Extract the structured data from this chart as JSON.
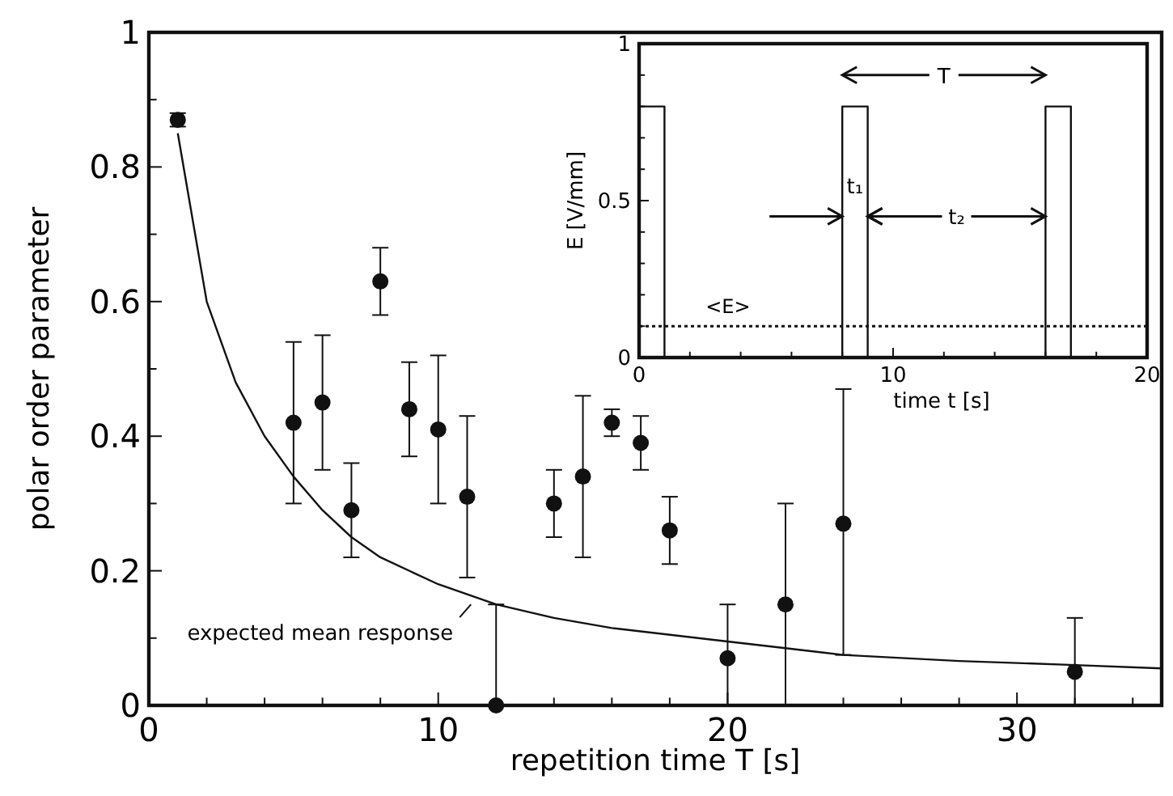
{
  "chart_data": [
    {
      "type": "scatter",
      "xlabel": "repetition time T [s]",
      "ylabel": "polar order parameter",
      "xlim": [
        0,
        35
      ],
      "ylim": [
        0,
        1
      ],
      "xticks": [
        0,
        {
          "value": 2,
          "label": null
        },
        {
          "value": 4,
          "label": null
        },
        {
          "value": 6,
          "label": null
        },
        {
          "value": 8,
          "label": null
        },
        10,
        {
          "value": 12,
          "label": null
        },
        {
          "value": 14,
          "label": null
        },
        {
          "value": 16,
          "label": null
        },
        {
          "value": 18,
          "label": null
        },
        20,
        {
          "value": 22,
          "label": null
        },
        {
          "value": 24,
          "label": null
        },
        {
          "value": 26,
          "label": null
        },
        {
          "value": 28,
          "label": null
        },
        30,
        {
          "value": 32,
          "label": null
        },
        {
          "value": 34,
          "label": null
        }
      ],
      "yticks": [
        0,
        {
          "value": 0.1,
          "label": null
        },
        0.2,
        {
          "value": 0.3,
          "label": null
        },
        0.4,
        {
          "value": 0.5,
          "label": null
        },
        0.6,
        {
          "value": 0.7,
          "label": null
        },
        0.8,
        {
          "value": 0.9,
          "label": null
        },
        1
      ],
      "series": [
        {
          "type": "scatter",
          "color": "#111111",
          "marker": "circle",
          "x": [
            1,
            5,
            6,
            7,
            8,
            9,
            10,
            11,
            12,
            14,
            15,
            16,
            17,
            18,
            20,
            22,
            24,
            32
          ],
          "values": [
            0.87,
            0.42,
            0.45,
            0.29,
            0.63,
            0.44,
            0.41,
            0.31,
            0,
            0.3,
            0.34,
            0.42,
            0.39,
            0.26,
            0.07,
            0.15,
            0.27,
            0.05
          ],
          "errors": [
            [
              0.86,
              0.88
            ],
            [
              0.3,
              0.54
            ],
            [
              0.35,
              0.55
            ],
            [
              0.22,
              0.36
            ],
            [
              0.58,
              0.68
            ],
            [
              0.37,
              0.51
            ],
            [
              0.3,
              0.52
            ],
            [
              0.19,
              0.43
            ],
            [
              0,
              0.15
            ],
            [
              0.25,
              0.35
            ],
            [
              0.22,
              0.46
            ],
            [
              0.4,
              0.44
            ],
            [
              0.35,
              0.43
            ],
            [
              0.21,
              0.31
            ],
            [
              0,
              0.15
            ],
            [
              0,
              0.3
            ],
            [
              0.075,
              0.47
            ],
            [
              0,
              0.13
            ]
          ]
        },
        {
          "type": "line",
          "color": "#111111",
          "marker": "none",
          "x": [
            1,
            2,
            3,
            4,
            5,
            6,
            7,
            8,
            10,
            12,
            14,
            16,
            20,
            22,
            24,
            28,
            32,
            35
          ],
          "values": [
            0.85,
            0.6,
            0.48,
            0.4,
            0.34,
            0.29,
            0.25,
            0.22,
            0.18,
            0.15,
            0.13,
            0.115,
            0.095,
            0.085,
            0.075,
            0.066,
            0.06,
            0.055
          ]
        }
      ],
      "annotations": [
        {
          "text": "expected mean response",
          "x": 11.3,
          "y": 0.155
        }
      ]
    },
    {
      "type": "line",
      "xlabel": "time t [s]",
      "ylabel": "E [V/mm]",
      "xlim": [
        0,
        20
      ],
      "ylim": [
        0,
        1
      ],
      "xticks": [
        0,
        {
          "value": 2,
          "label": null
        },
        {
          "value": 4,
          "label": null
        },
        {
          "value": 6,
          "label": null
        },
        {
          "value": 8,
          "label": null
        },
        10,
        {
          "value": 12,
          "label": null
        },
        {
          "value": 14,
          "label": null
        },
        {
          "value": 16,
          "label": null
        },
        {
          "value": 18,
          "label": null
        },
        20
      ],
      "yticks": [
        0,
        {
          "value": 0.1,
          "label": null
        },
        {
          "value": 0.2,
          "label": null
        },
        {
          "value": 0.3,
          "label": null
        },
        {
          "value": 0.4,
          "label": null
        },
        0.5,
        {
          "value": 0.6,
          "label": null
        },
        {
          "value": 0.7,
          "label": null
        },
        {
          "value": 0.8,
          "label": null
        },
        {
          "value": 0.9,
          "label": null
        },
        1
      ],
      "series": [
        {
          "color": "#111111",
          "marker": "none",
          "x": [
            0,
            0,
            1,
            1,
            8,
            8,
            9,
            9,
            16,
            16,
            17,
            17,
            20
          ],
          "values": [
            0,
            0.8,
            0.8,
            0,
            0,
            0.8,
            0.8,
            0,
            0,
            0.8,
            0.8,
            0,
            0
          ]
        }
      ],
      "ref_lines": [
        {
          "axis": "y",
          "value": 0.1,
          "label": "<E>",
          "line_style": "dotted",
          "color": "#111111"
        }
      ],
      "annotations": [
        "T",
        "t₁",
        {
          "text": "t₂",
          "x": 16,
          "y": 0.45
        }
      ]
    }
  ]
}
